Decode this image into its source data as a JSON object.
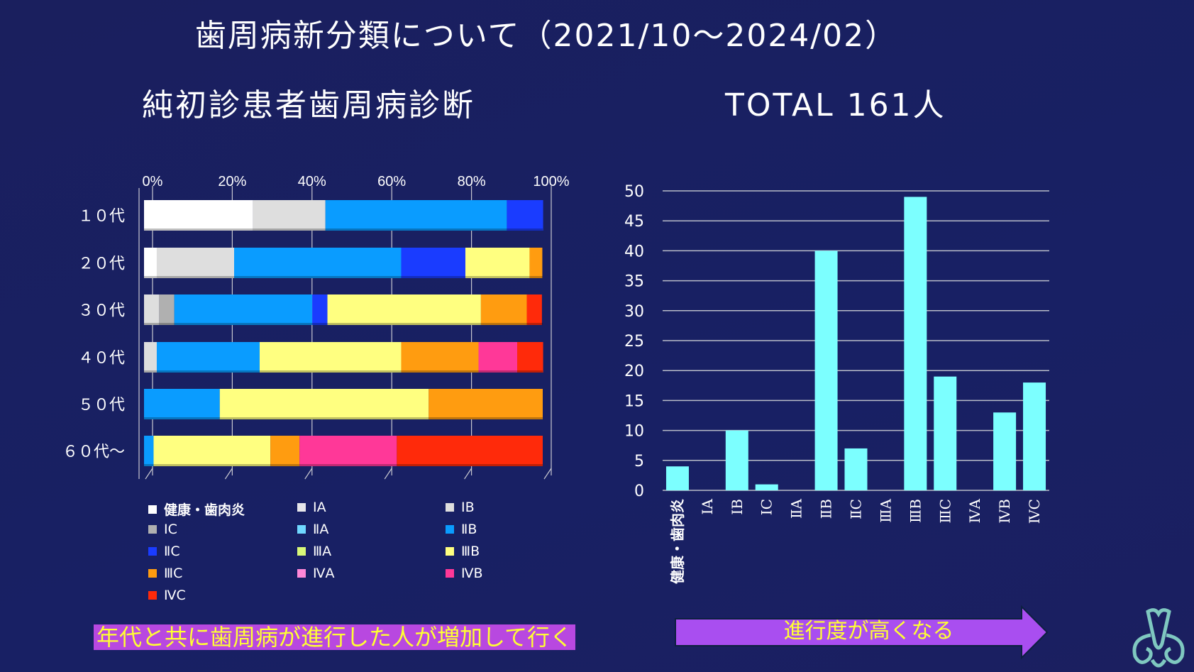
{
  "header": {
    "title": "歯周病新分類について（2021/10〜2024/02）",
    "subtitle": "純初診患者歯周病診断",
    "total": "TOTAL 161人"
  },
  "chart_data": [
    {
      "type": "bar",
      "orientation": "horizontal-stacked-100%",
      "categories": [
        "１０代",
        "２０代",
        "３０代",
        "４０代",
        "５０代",
        "６０代〜"
      ],
      "x_ticks": [
        "0%",
        "20%",
        "40%",
        "60%",
        "80%",
        "100%"
      ],
      "xlim": [
        0,
        100
      ],
      "grid": true,
      "legend_position": "bottom",
      "series": [
        {
          "name": "健康・歯肉炎",
          "color": "#ffffff",
          "values": [
            27.3,
            3.2,
            0,
            0,
            0,
            0
          ]
        },
        {
          "name": "ⅠA",
          "color": "#e6e6ea",
          "values": [
            0,
            0,
            0,
            0,
            0,
            0
          ]
        },
        {
          "name": "ⅠB",
          "color": "#dedede",
          "values": [
            18.2,
            19.4,
            3.8,
            3.2,
            0,
            0
          ]
        },
        {
          "name": "ⅠC",
          "color": "#b0b0b0",
          "values": [
            0,
            0,
            3.8,
            0,
            0,
            0
          ]
        },
        {
          "name": "ⅡA",
          "color": "#70d8ff",
          "values": [
            0,
            0,
            0,
            0,
            0,
            0
          ]
        },
        {
          "name": "ⅡB",
          "color": "#0a9cff",
          "values": [
            45.5,
            41.9,
            34.6,
            25.8,
            19.0,
            2.4
          ]
        },
        {
          "name": "ⅡC",
          "color": "#1a3cff",
          "values": [
            9.1,
            16.1,
            3.8,
            0,
            0,
            0
          ]
        },
        {
          "name": "ⅢA",
          "color": "#d8f878",
          "values": [
            0,
            0,
            0,
            0,
            0,
            0
          ]
        },
        {
          "name": "ⅢB",
          "color": "#ffff80",
          "values": [
            0,
            16.1,
            38.5,
            35.5,
            52.4,
            29.3
          ]
        },
        {
          "name": "ⅢC",
          "color": "#ff9c10",
          "values": [
            0,
            3.2,
            11.5,
            19.4,
            28.6,
            7.3
          ]
        },
        {
          "name": "ⅣA",
          "color": "#ff88d8",
          "values": [
            0,
            0,
            0,
            0,
            0,
            0
          ]
        },
        {
          "name": "ⅣB",
          "color": "#ff3898",
          "values": [
            0,
            0,
            0,
            9.7,
            0,
            24.4
          ]
        },
        {
          "name": "ⅣC",
          "color": "#ff2a0a",
          "values": [
            0,
            0,
            3.8,
            6.5,
            0,
            36.6
          ]
        }
      ]
    },
    {
      "type": "bar",
      "categories": [
        "健康・歯肉炎",
        "ⅠA",
        "ⅠB",
        "ⅠC",
        "ⅡA",
        "ⅡB",
        "ⅡC",
        "ⅢA",
        "ⅢB",
        "ⅢC",
        "ⅣA",
        "ⅣB",
        "ⅣC"
      ],
      "values": [
        4,
        0,
        10,
        1,
        0,
        40,
        7,
        0,
        49,
        19,
        0,
        13,
        18
      ],
      "ylim": [
        0,
        50
      ],
      "y_ticks": [
        0,
        5,
        10,
        15,
        20,
        25,
        30,
        35,
        40,
        45,
        50
      ],
      "grid": true,
      "color": "#7cffff"
    }
  ],
  "footer": {
    "caption": "年代と共に歯周病が進行した人が増加して行く",
    "arrow_label": "進行度が高くなる",
    "caption_bg": "#b848e0",
    "arrow_color": "#a94ef0",
    "text_color": "#ffff33"
  },
  "logo": {
    "icon": "trefoil-logo-icon"
  }
}
